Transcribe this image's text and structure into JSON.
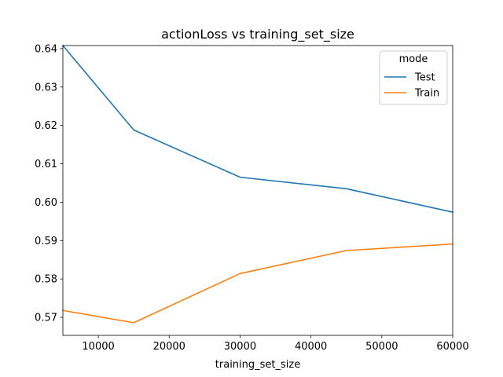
{
  "chart_data": {
    "type": "line",
    "title": "actionLoss vs training_set_size",
    "xlabel": "training_set_size",
    "ylabel": "",
    "x": [
      5000,
      15000,
      30000,
      45000,
      60000
    ],
    "xlim": [
      5000,
      60000
    ],
    "ylim": [
      0.5653,
      0.6408
    ],
    "xticks": [
      10000,
      20000,
      30000,
      40000,
      50000,
      60000
    ],
    "yticks": [
      0.57,
      0.58,
      0.59,
      0.6,
      0.61,
      0.62,
      0.63,
      0.64
    ],
    "xtick_labels": [
      "10000",
      "20000",
      "30000",
      "40000",
      "50000",
      "60000"
    ],
    "ytick_labels": [
      "0.57",
      "0.58",
      "0.59",
      "0.60",
      "0.61",
      "0.62",
      "0.63",
      "0.64"
    ],
    "legend": {
      "title": "mode",
      "placement": "top-right"
    },
    "grid": false,
    "series": [
      {
        "name": "Test",
        "color": "#1f77b4",
        "values": [
          0.6408,
          0.6188,
          0.6065,
          0.6035,
          0.5974
        ]
      },
      {
        "name": "Train",
        "color": "#ff7f0e",
        "values": [
          0.5718,
          0.5686,
          0.5814,
          0.5874,
          0.5891
        ]
      }
    ]
  }
}
